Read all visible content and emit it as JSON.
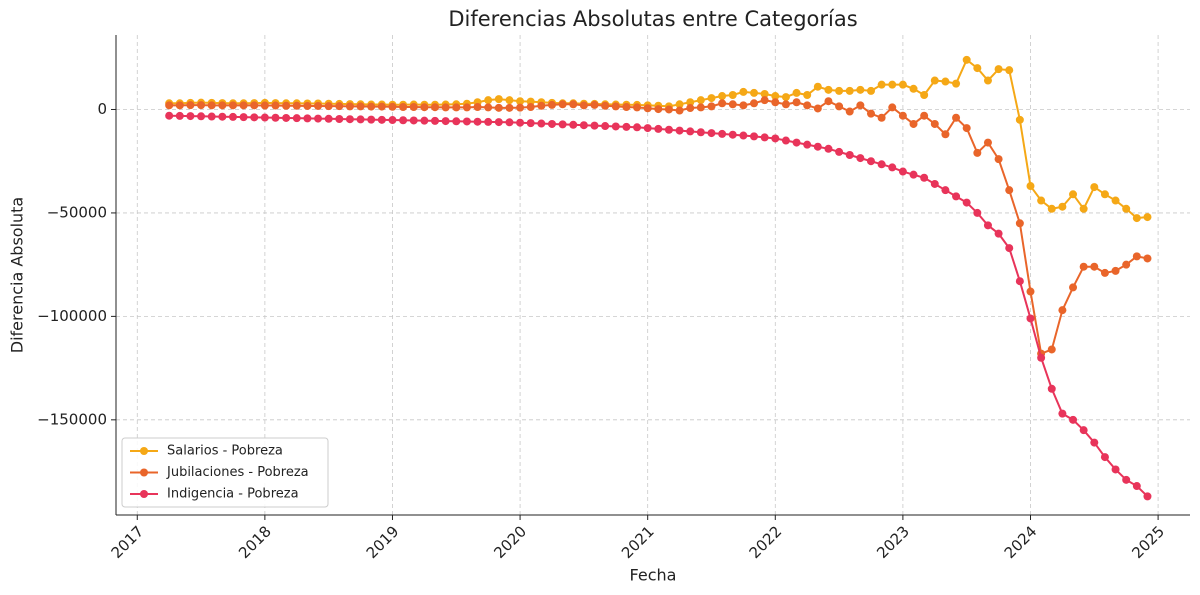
{
  "chart_data": {
    "type": "line",
    "title": "Diferencias Absolutas entre Categorías",
    "x_label": "Fecha",
    "y_label": "Diferencia Absoluta",
    "x": [
      "2017-04",
      "2017-05",
      "2017-06",
      "2017-07",
      "2017-08",
      "2017-09",
      "2017-10",
      "2017-11",
      "2017-12",
      "2018-01",
      "2018-02",
      "2018-03",
      "2018-04",
      "2018-05",
      "2018-06",
      "2018-07",
      "2018-08",
      "2018-09",
      "2018-10",
      "2018-11",
      "2018-12",
      "2019-01",
      "2019-02",
      "2019-03",
      "2019-04",
      "2019-05",
      "2019-06",
      "2019-07",
      "2019-08",
      "2019-09",
      "2019-10",
      "2019-11",
      "2019-12",
      "2020-01",
      "2020-02",
      "2020-03",
      "2020-04",
      "2020-05",
      "2020-06",
      "2020-07",
      "2020-08",
      "2020-09",
      "2020-10",
      "2020-11",
      "2020-12",
      "2021-01",
      "2021-02",
      "2021-03",
      "2021-04",
      "2021-05",
      "2021-06",
      "2021-07",
      "2021-08",
      "2021-09",
      "2021-10",
      "2021-11",
      "2021-12",
      "2022-01",
      "2022-02",
      "2022-03",
      "2022-04",
      "2022-05",
      "2022-06",
      "2022-07",
      "2022-08",
      "2022-09",
      "2022-10",
      "2022-11",
      "2022-12",
      "2023-01",
      "2023-02",
      "2023-03",
      "2023-04",
      "2023-05",
      "2023-06",
      "2023-07",
      "2023-08",
      "2023-09",
      "2023-10",
      "2023-11",
      "2023-12",
      "2024-01",
      "2024-02",
      "2024-03",
      "2024-04",
      "2024-05",
      "2024-06",
      "2024-07",
      "2024-08",
      "2024-09",
      "2024-10",
      "2024-11",
      "2024-12"
    ],
    "series": [
      {
        "name": "Salarios - Pobreza",
        "color": "#f5a816",
        "values": [
          3000,
          3000,
          3200,
          3300,
          3200,
          3100,
          3000,
          3000,
          3100,
          3200,
          3100,
          3000,
          3000,
          2900,
          2900,
          2800,
          2700,
          2600,
          2500,
          2400,
          2400,
          2300,
          2300,
          2400,
          2300,
          2300,
          2400,
          2500,
          2800,
          3500,
          4500,
          5000,
          4500,
          4000,
          3800,
          3500,
          3200,
          3000,
          3000,
          2800,
          2700,
          2500,
          2400,
          2300,
          2200,
          2000,
          1800,
          1500,
          2500,
          3500,
          4500,
          5500,
          6500,
          7000,
          8500,
          8000,
          7500,
          6500,
          6000,
          8000,
          7000,
          11000,
          9500,
          9000,
          9000,
          9500,
          9000,
          12000,
          12000,
          12000,
          10000,
          7000,
          14000,
          13500,
          12500,
          24000,
          20000,
          14000,
          19500,
          19000,
          -5000,
          -37000,
          -44000,
          -48000,
          -47000,
          -41000,
          -48000,
          -37500,
          -41000,
          -44000,
          -48000,
          -52500,
          -52000
        ]
      },
      {
        "name": "Jubilaciones - Pobreza",
        "color": "#e9652a",
        "values": [
          2000,
          2000,
          2100,
          2100,
          2000,
          2000,
          2000,
          2000,
          2000,
          1900,
          1900,
          1800,
          1800,
          1700,
          1700,
          1600,
          1600,
          1500,
          1500,
          1400,
          1400,
          1300,
          1200,
          1200,
          1100,
          1100,
          1000,
          1000,
          1000,
          1200,
          1000,
          800,
          800,
          900,
          1200,
          1800,
          2200,
          2500,
          2500,
          2000,
          2200,
          1800,
          1500,
          1200,
          1000,
          600,
          200,
          0,
          -500,
          700,
          1000,
          1500,
          3000,
          2500,
          2000,
          3000,
          4500,
          3500,
          2500,
          3500,
          2000,
          500,
          4000,
          1500,
          -1000,
          2000,
          -2000,
          -4000,
          1000,
          -3000,
          -7000,
          -3000,
          -7000,
          -12000,
          -4000,
          -9000,
          -21000,
          -16000,
          -24000,
          -39000,
          -55000,
          -88000,
          -118000,
          -116000,
          -97000,
          -86000,
          -76000,
          -76000,
          -79000,
          -78000,
          -75000,
          -71000,
          -72000
        ]
      },
      {
        "name": "Indigencia - Pobreza",
        "color": "#e8345a",
        "values": [
          -3000,
          -3100,
          -3200,
          -3300,
          -3400,
          -3500,
          -3600,
          -3700,
          -3800,
          -3900,
          -4000,
          -4100,
          -4200,
          -4300,
          -4400,
          -4500,
          -4600,
          -4700,
          -4800,
          -4900,
          -5000,
          -5100,
          -5200,
          -5300,
          -5400,
          -5500,
          -5600,
          -5700,
          -5800,
          -5900,
          -6000,
          -6100,
          -6200,
          -6400,
          -6600,
          -6800,
          -7000,
          -7200,
          -7400,
          -7600,
          -7800,
          -8000,
          -8200,
          -8400,
          -8600,
          -9000,
          -9400,
          -9800,
          -10200,
          -10600,
          -11000,
          -11400,
          -11800,
          -12200,
          -12600,
          -13000,
          -13500,
          -14000,
          -15000,
          -16000,
          -17000,
          -18000,
          -19000,
          -20500,
          -22000,
          -23500,
          -25000,
          -26500,
          -28000,
          -30000,
          -31500,
          -33000,
          -36000,
          -39000,
          -42000,
          -45000,
          -50000,
          -56000,
          -60000,
          -67000,
          -83000,
          -101000,
          -120000,
          -135000,
          -147000,
          -150000,
          -155000,
          -161000,
          -168000,
          -174000,
          -179000,
          -182000,
          -187000
        ]
      }
    ],
    "xlim": [
      "2016-11",
      "2025-04"
    ],
    "xticks": [
      "2017",
      "2018",
      "2019",
      "2020",
      "2021",
      "2022",
      "2023",
      "2024",
      "2025"
    ],
    "ylim": [
      -196000,
      36000
    ],
    "yticks": [
      {
        "value": -150000,
        "label": "−150000"
      },
      {
        "value": -100000,
        "label": "−100000"
      },
      {
        "value": -50000,
        "label": "−50000"
      },
      0
    ],
    "grid": true,
    "legend": "lower left"
  }
}
